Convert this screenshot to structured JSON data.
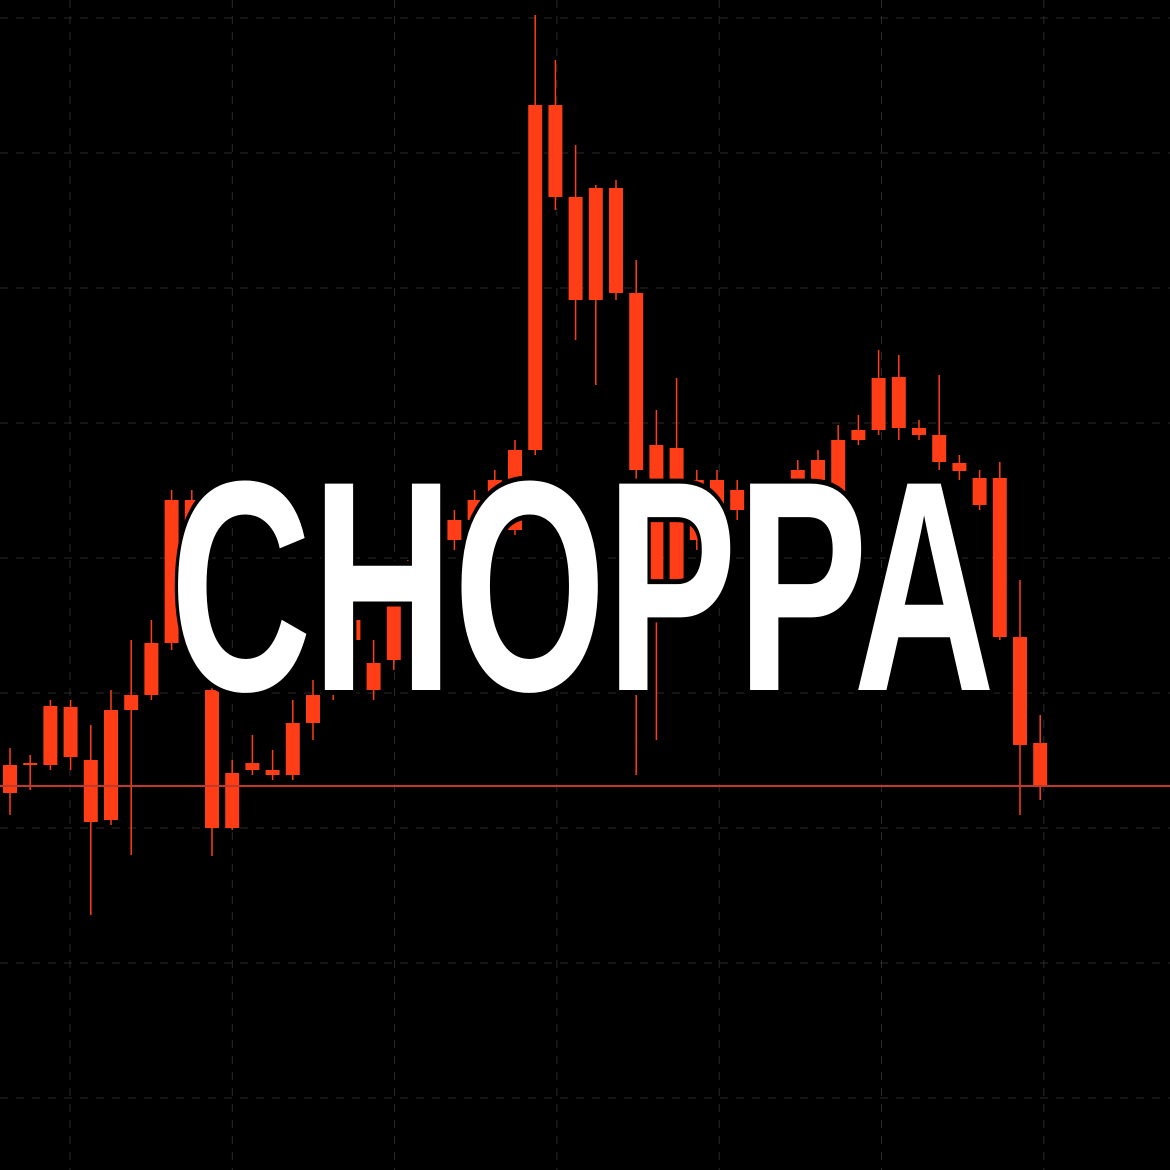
{
  "chart_data": {
    "type": "candlestick",
    "title": "CHOPPA",
    "color": "#ff3d17",
    "grid": true,
    "ylim": [
      0,
      1170
    ],
    "hline": 384,
    "hline_color": "#c0392b",
    "open": [
      377,
      405,
      405,
      463,
      410,
      350,
      460,
      475,
      527,
      670,
      480,
      342,
      400,
      400,
      395,
      447,
      475,
      530,
      507,
      510,
      570,
      610,
      630,
      650,
      670,
      640,
      720,
      1065,
      973,
      870,
      982,
      877,
      725,
      590,
      690,
      650,
      660,
      665,
      670,
      680,
      690,
      670,
      730,
      740,
      793,
      742,
      735,
      707,
      692,
      692,
      533,
      427
    ],
    "close": [
      405,
      407,
      464,
      413,
      348,
      460,
      475,
      527,
      670,
      610,
      342,
      397,
      407,
      395,
      447,
      475,
      530,
      550,
      480,
      570,
      610,
      630,
      650,
      670,
      690,
      720,
      1065,
      973,
      870,
      982,
      877,
      700,
      590,
      722,
      630,
      690,
      680,
      675,
      680,
      700,
      710,
      730,
      740,
      792,
      742,
      735,
      708,
      699,
      665,
      533,
      425,
      383
    ],
    "high": [
      422,
      415,
      470,
      470,
      445,
      480,
      530,
      550,
      680,
      680,
      500,
      410,
      435,
      420,
      470,
      490,
      540,
      560,
      530,
      580,
      620,
      640,
      660,
      680,
      700,
      730,
      1155,
      1110,
      1025,
      985,
      990,
      910,
      760,
      792,
      700,
      700,
      690,
      685,
      690,
      710,
      720,
      745,
      755,
      820,
      815,
      750,
      795,
      715,
      700,
      708,
      590,
      455
    ],
    "low": [
      355,
      380,
      400,
      400,
      255,
      345,
      315,
      470,
      520,
      600,
      314,
      340,
      395,
      390,
      390,
      430,
      470,
      525,
      470,
      500,
      560,
      600,
      620,
      640,
      660,
      635,
      715,
      960,
      830,
      785,
      870,
      395,
      430,
      600,
      620,
      640,
      650,
      655,
      660,
      670,
      680,
      640,
      725,
      735,
      730,
      730,
      700,
      690,
      660,
      530,
      355,
      370
    ]
  }
}
